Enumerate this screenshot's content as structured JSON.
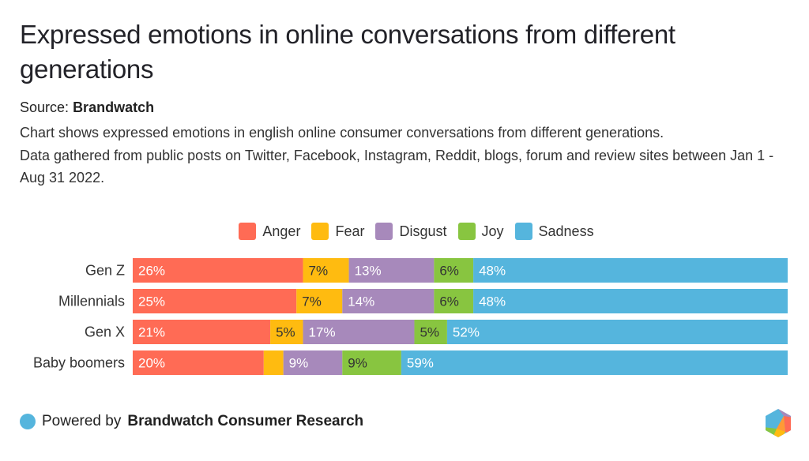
{
  "header": {
    "title": "Expressed emotions in online conversations from different generations",
    "source_prefix": "Source:",
    "source_name": "Brandwatch",
    "description_lines": [
      "Chart shows expressed emotions in english online consumer conversations from different generations.",
      "Data gathered from public posts on Twitter, Facebook, Instagram, Reddit, blogs, forum and review sites between Jan 1 - Aug 31 2022."
    ]
  },
  "footer": {
    "powered_prefix": "Powered by",
    "powered_name": "Brandwatch Consumer Research",
    "logo_icon": "hexagon-logo-icon"
  },
  "chart_data": {
    "type": "bar",
    "orientation": "horizontal",
    "stacked": true,
    "normalized": true,
    "title": "Expressed emotions in online conversations from different generations",
    "xlabel": "",
    "ylabel": "",
    "xlim": [
      0,
      100
    ],
    "grid": false,
    "legend_position": "top-center",
    "categories": [
      "Gen Z",
      "Millennials",
      "Gen X",
      "Baby boomers"
    ],
    "series": [
      {
        "name": "Anger",
        "color": "#ff6b55",
        "label_color": "#ffffff",
        "values": [
          26,
          25,
          21,
          20
        ],
        "labels": [
          "26%",
          "25%",
          "21%",
          "20%"
        ]
      },
      {
        "name": "Fear",
        "color": "#ffbb10",
        "label_color": "#333333",
        "values": [
          7,
          7,
          5,
          3
        ],
        "labels": [
          "7%",
          "7%",
          "5%",
          ""
        ]
      },
      {
        "name": "Disgust",
        "color": "#a789bb",
        "label_color": "#ffffff",
        "values": [
          13,
          14,
          17,
          9
        ],
        "labels": [
          "13%",
          "14%",
          "17%",
          "9%"
        ]
      },
      {
        "name": "Joy",
        "color": "#88c540",
        "label_color": "#333333",
        "values": [
          6,
          6,
          5,
          9
        ],
        "labels": [
          "6%",
          "6%",
          "5%",
          "9%"
        ]
      },
      {
        "name": "Sadness",
        "color": "#55b5dd",
        "label_color": "#ffffff",
        "values": [
          48,
          48,
          52,
          59
        ],
        "labels": [
          "48%",
          "48%",
          "52%",
          "59%"
        ]
      }
    ]
  }
}
